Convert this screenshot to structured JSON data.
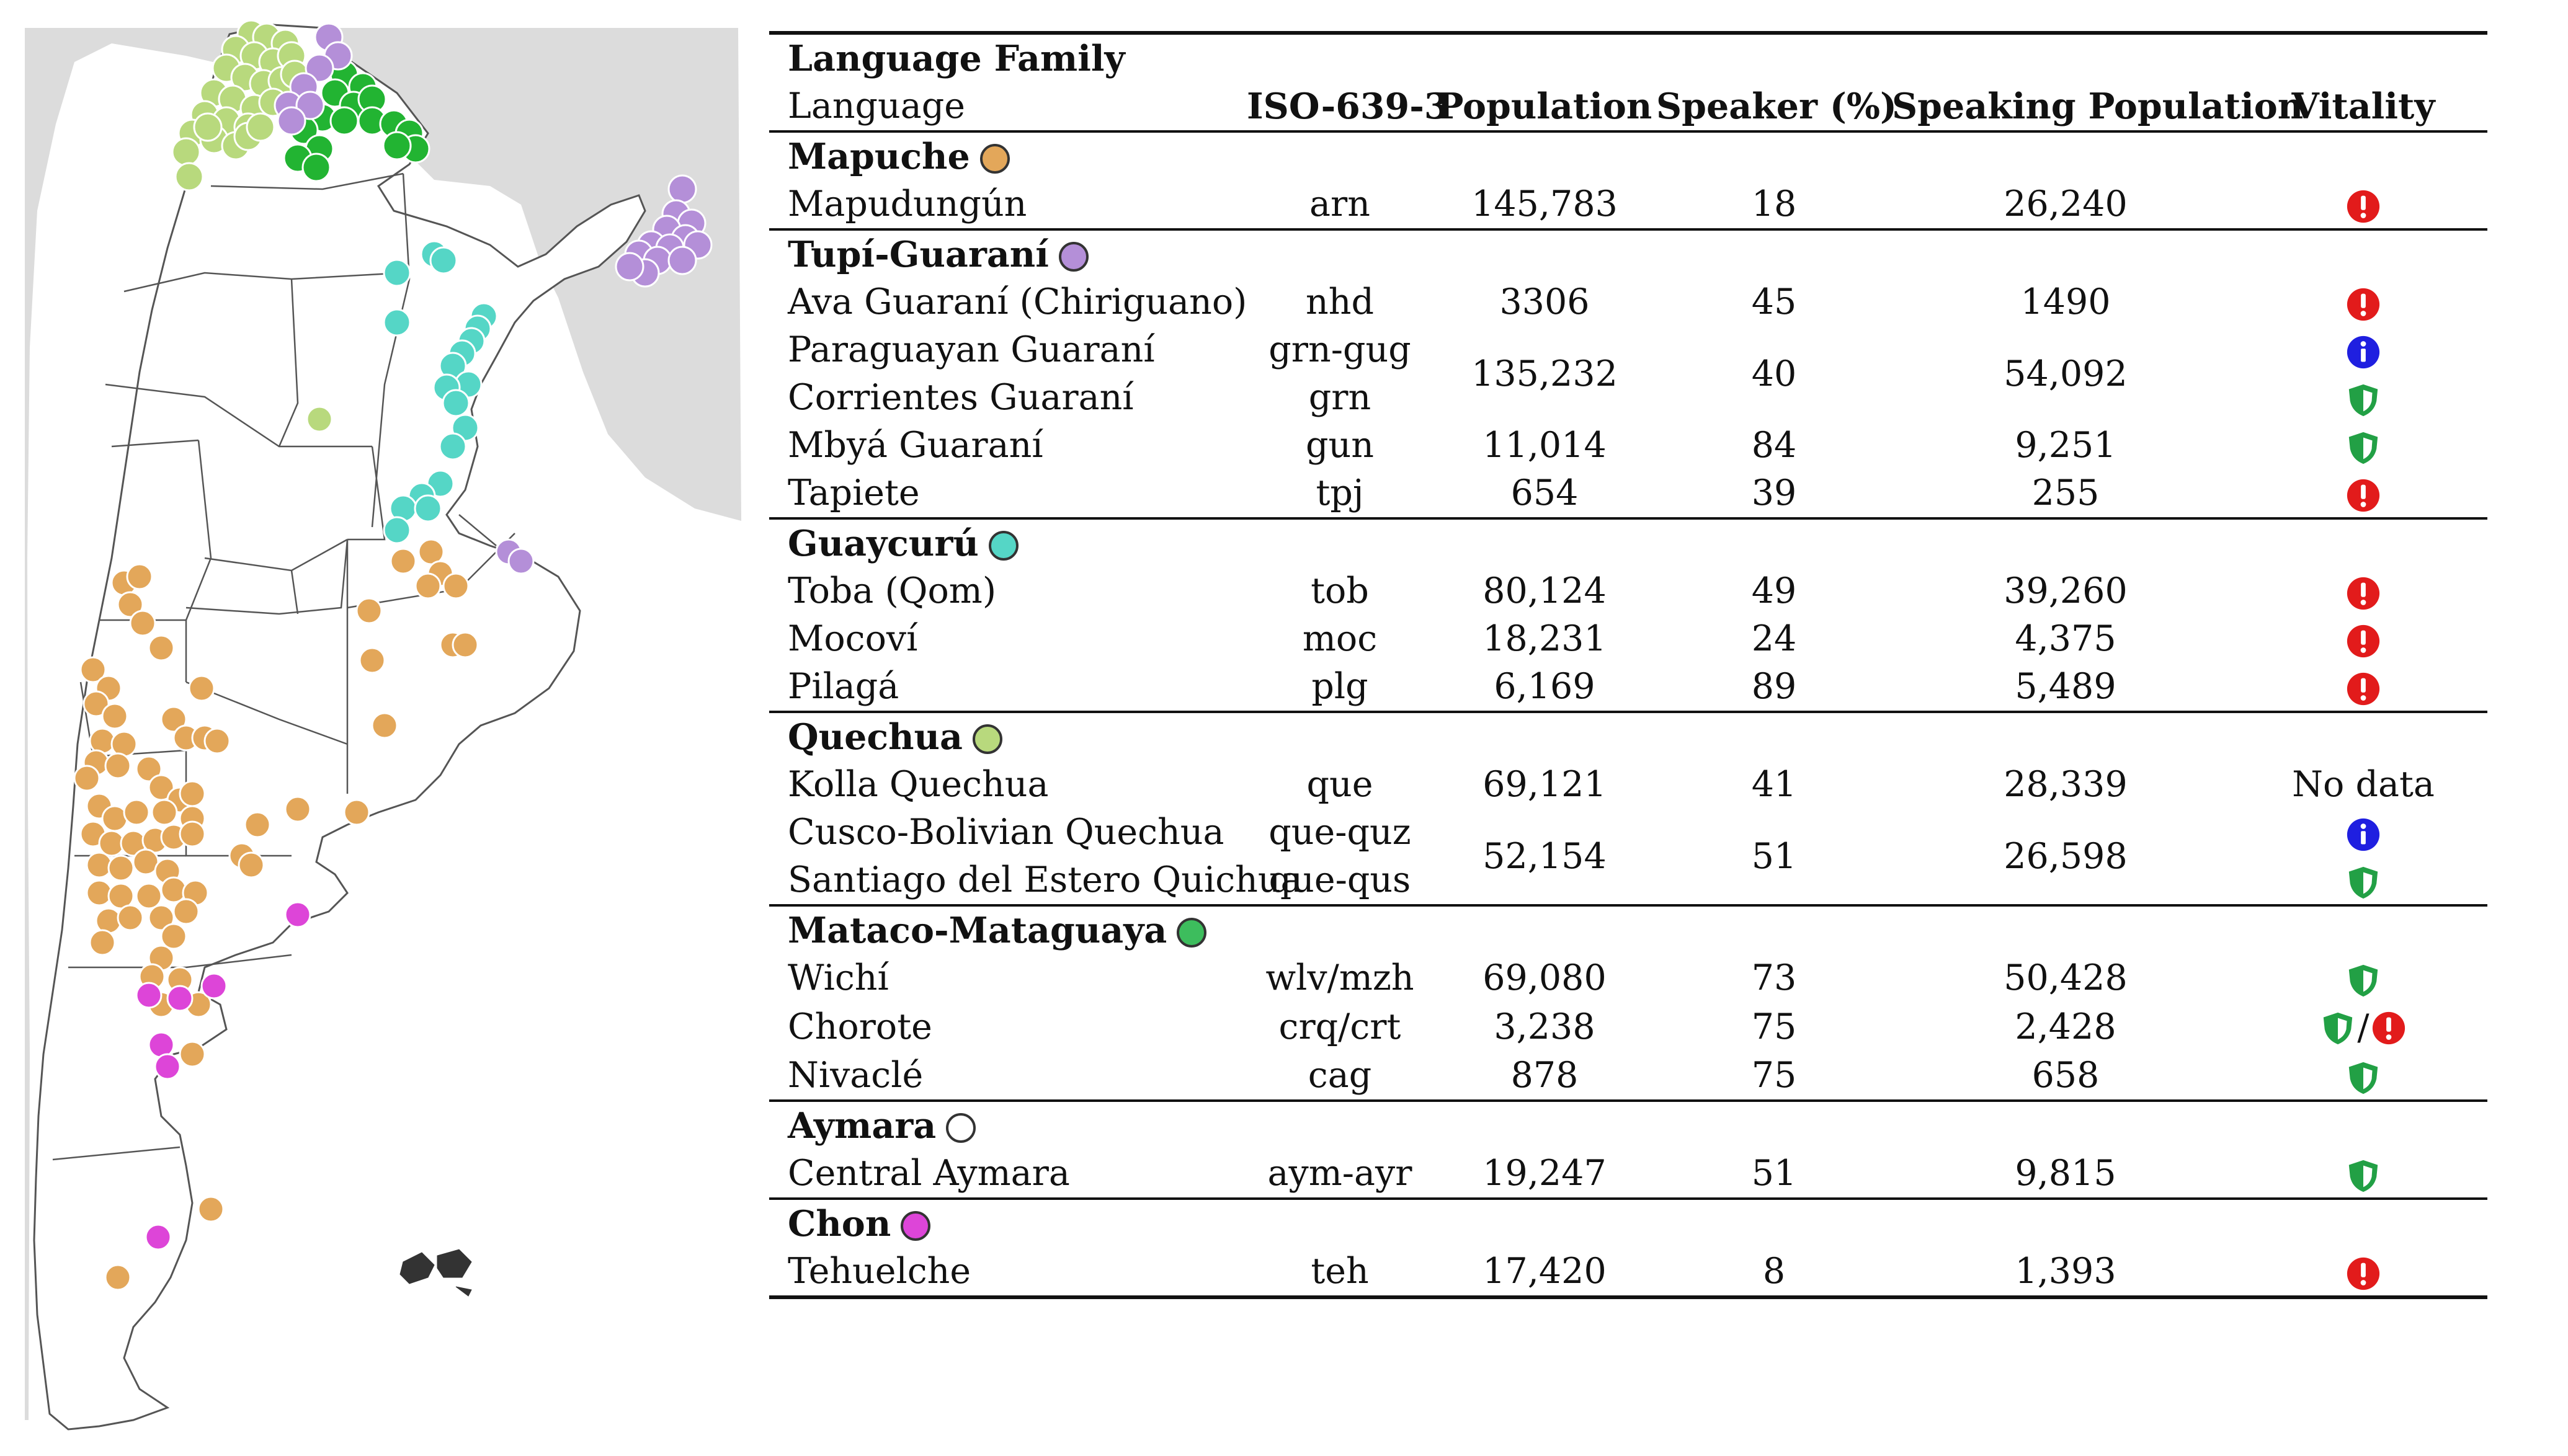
{
  "colors": {
    "mapuche": "#e3a75a",
    "tupi_guarani": "#b48fd8",
    "guaycuru": "#55d6c6",
    "quechua": "#b8d97d",
    "mataco_mataguaya": "#3dbd5d",
    "aymara": "#ffffff",
    "chon": "#dd45d8",
    "danger_red": "#e21b1b",
    "info_blue": "#1f1fe0",
    "safe_green": "#22a045"
  },
  "table": {
    "headers": {
      "family": "Language Family",
      "language": "Language",
      "iso": "ISO-639-3",
      "population": "Population",
      "speaker_pct": "Speaker (%)",
      "speaking_population": "Speaking Population",
      "vitality": "Vitality"
    },
    "families": [
      {
        "name": "Mapuche",
        "dot_color": "#e3a75a",
        "rows": [
          {
            "language": "Mapudungún",
            "iso": "arn",
            "population": "145,783",
            "speaker": "18",
            "speaking": "26,240",
            "vitality": [
              "danger-icon"
            ]
          }
        ]
      },
      {
        "name": "Tupí-Guaraní",
        "dot_color": "#b48fd8",
        "rows": [
          {
            "language": "Ava Guaraní (Chiriguano)",
            "iso": "nhd",
            "population": "3306",
            "speaker": "45",
            "speaking": "1490",
            "vitality": [
              "danger-icon"
            ]
          },
          {
            "language": "Paraguayan Guaraní",
            "iso": "grn-gug",
            "vitality": [
              "info-icon"
            ]
          },
          {
            "language": "Corrientes Guaraní",
            "iso": "grn",
            "vitality": [
              "shield-icon"
            ]
          },
          {
            "language": "Mbyá Guaraní",
            "iso": "gun",
            "population": "11,014",
            "speaker": "84",
            "speaking": "9,251",
            "vitality": [
              "shield-icon"
            ]
          },
          {
            "language": "Tapiete",
            "iso": "tpj",
            "population": "654",
            "speaker": "39",
            "speaking": "255",
            "vitality": [
              "danger-icon"
            ]
          }
        ],
        "merged": {
          "population": "135,232",
          "speaker": "40",
          "speaking": "54,092"
        }
      },
      {
        "name": "Guaycurú",
        "dot_color": "#55d6c6",
        "rows": [
          {
            "language": "Toba (Qom)",
            "iso": "tob",
            "population": "80,124",
            "speaker": "49",
            "speaking": "39,260",
            "vitality": [
              "danger-icon"
            ]
          },
          {
            "language": "Mocoví",
            "iso": "moc",
            "population": "18,231",
            "speaker": "24",
            "speaking": "4,375",
            "vitality": [
              "danger-icon"
            ]
          },
          {
            "language": "Pilagá",
            "iso": "plg",
            "population": "6,169",
            "speaker": "89",
            "speaking": "5,489",
            "vitality": [
              "danger-icon"
            ]
          }
        ]
      },
      {
        "name": "Quechua",
        "dot_color": "#b8d97d",
        "rows": [
          {
            "language": "Kolla Quechua",
            "iso": "que",
            "population": "69,121",
            "speaker": "41",
            "speaking": "28,339",
            "vitality_text": "No data"
          },
          {
            "language": "Cusco-Bolivian Quechua",
            "iso": "que-quz",
            "vitality": [
              "info-icon"
            ]
          },
          {
            "language": "Santiago del Estero Quichua",
            "iso": "que-qus",
            "vitality": [
              "shield-icon"
            ]
          }
        ],
        "merged": {
          "population": "52,154",
          "speaker": "51",
          "speaking": "26,598"
        }
      },
      {
        "name": "Mataco-Mataguaya",
        "dot_color": "#3dbd5d",
        "rows": [
          {
            "language": "Wichí",
            "iso": "wlv/mzh",
            "population": "69,080",
            "speaker": "73",
            "speaking": "50,428",
            "vitality": [
              "shield-icon"
            ]
          },
          {
            "language": "Chorote",
            "iso": "crq/crt",
            "population": "3,238",
            "speaker": "75",
            "speaking": "2,428",
            "vitality": [
              "shield-icon",
              "danger-icon"
            ]
          },
          {
            "language": "Nivaclé",
            "iso": "cag",
            "population": "878",
            "speaker": "75",
            "speaking": "658",
            "vitality": [
              "shield-icon"
            ]
          }
        ]
      },
      {
        "name": "Aymara",
        "dot_color": "#ffffff",
        "rows": [
          {
            "language": "Central Aymara",
            "iso": "aym-ayr",
            "population": "19,247",
            "speaker": "51",
            "speaking": "9,815",
            "vitality": [
              "shield-icon"
            ]
          }
        ]
      },
      {
        "name": "Chon",
        "dot_color": "#dd45d8",
        "rows": [
          {
            "language": "Tehuelche",
            "iso": "teh",
            "population": "17,420",
            "speaker": "8",
            "speaking": "1,393",
            "vitality": [
              "danger-icon"
            ]
          }
        ]
      }
    ],
    "vitality_separator": "/"
  }
}
